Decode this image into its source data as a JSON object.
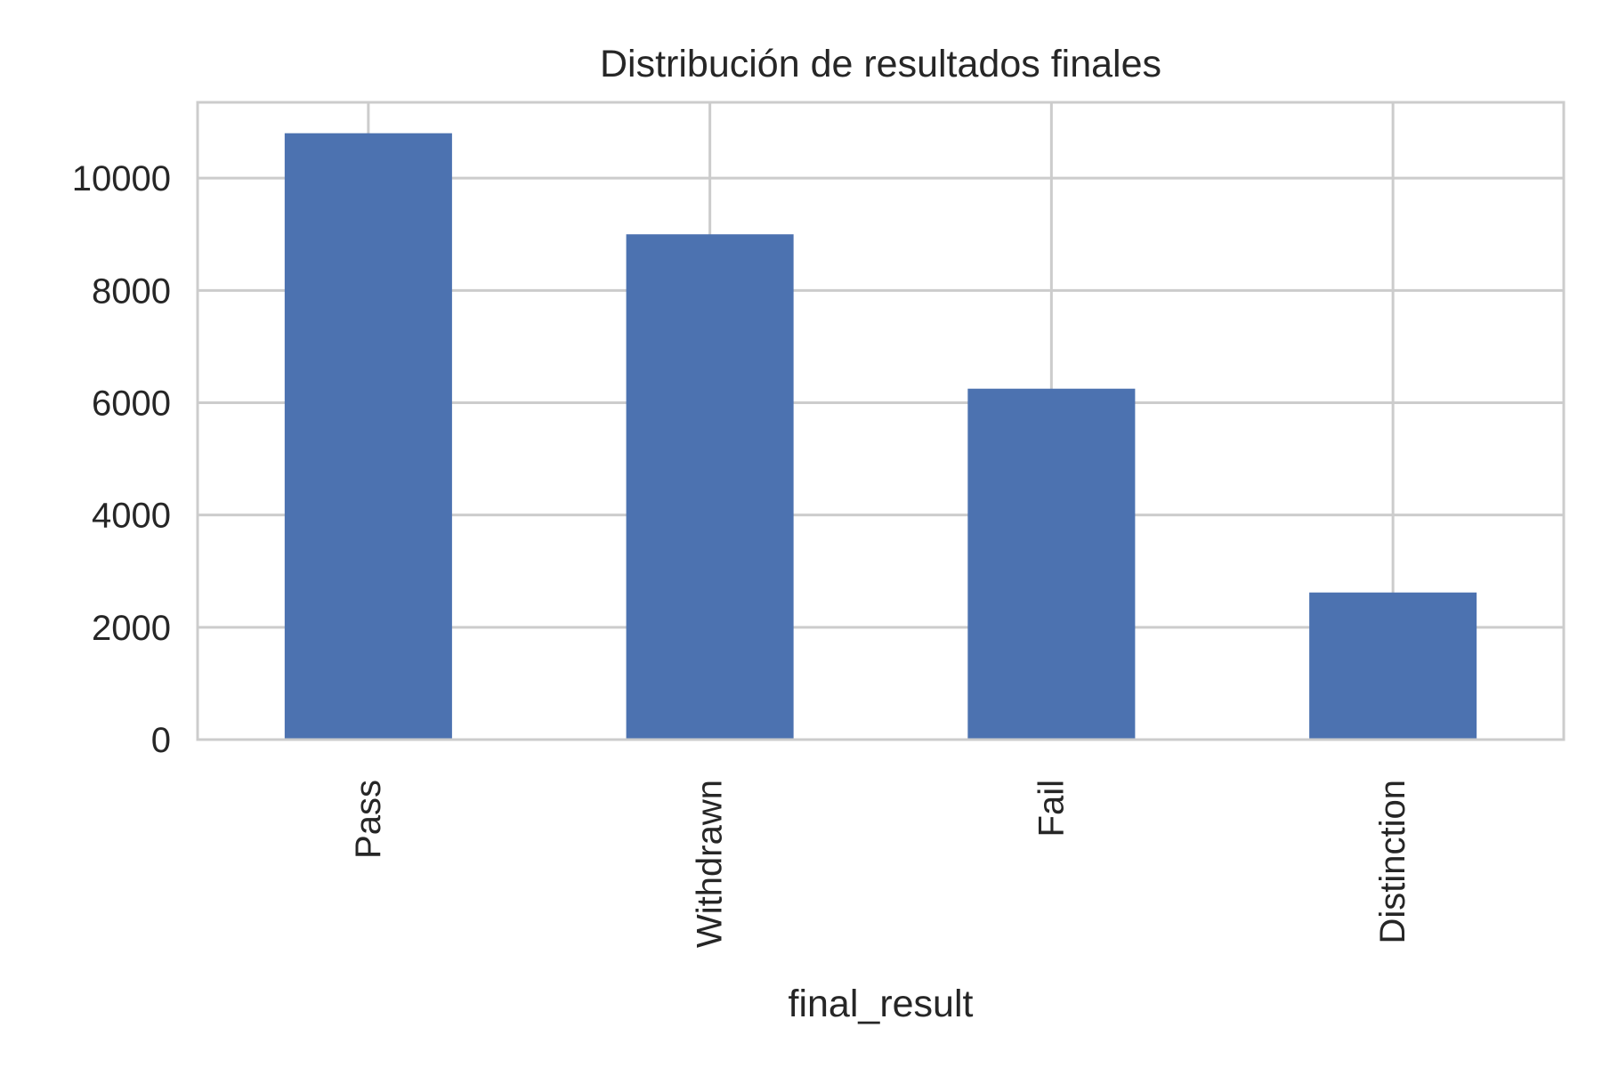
{
  "chart_data": {
    "type": "bar",
    "title": "Distribución de resultados finales",
    "xlabel": "final_result",
    "ylabel": "",
    "categories": [
      "Pass",
      "Withdrawn",
      "Fail",
      "Distinction"
    ],
    "values": [
      10800,
      9000,
      6250,
      2620
    ],
    "ylim": [
      0,
      11350
    ],
    "yticks": [
      0,
      2000,
      4000,
      6000,
      8000,
      10000
    ],
    "ytick_labels": [
      "0",
      "2000",
      "4000",
      "6000",
      "8000",
      "10000"
    ],
    "grid": true,
    "legend": "none",
    "colors": {
      "bar": "#4c72b0",
      "grid": "#cccccc",
      "spine": "#cccccc",
      "text": "#262626",
      "background": "#ffffff"
    }
  }
}
